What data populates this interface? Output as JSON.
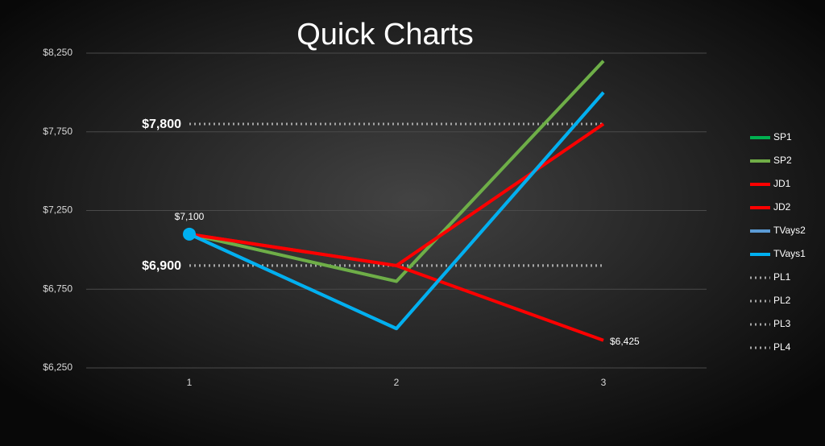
{
  "chart_data": {
    "type": "line",
    "title": "Quick Charts",
    "categories": [
      "1",
      "2",
      "3"
    ],
    "ylim": [
      6250,
      8250
    ],
    "yticks": [
      {
        "value": 6250,
        "label": "$6,250"
      },
      {
        "value": 6750,
        "label": "$6,750"
      },
      {
        "value": 7250,
        "label": "$7,250"
      },
      {
        "value": 7750,
        "label": "$7,750"
      },
      {
        "value": 8250,
        "label": "$8,250"
      }
    ],
    "grid": true,
    "legend": "right",
    "series": [
      {
        "name": "SP1",
        "color": "#00b050",
        "values": [
          7100,
          6800,
          8200
        ]
      },
      {
        "name": "SP2",
        "color": "#70ad47",
        "values": [
          7100,
          6800,
          8200
        ]
      },
      {
        "name": "JD1",
        "color": "#ff0000",
        "values": [
          7100,
          6900,
          6425
        ],
        "value_labels": [
          null,
          null,
          "$6,425"
        ]
      },
      {
        "name": "JD2",
        "color": "#ff0000",
        "values": [
          7100,
          6900,
          7800
        ]
      },
      {
        "name": "TVays2",
        "color": "#5b9bd5",
        "values": [
          7100,
          6500,
          8000
        ]
      },
      {
        "name": "TVays1",
        "color": "#00b0f0",
        "values": [
          7100,
          6500,
          8000
        ],
        "value_labels": [
          "$7,100",
          null,
          null
        ],
        "marker": true
      },
      {
        "name": "PL1",
        "color": "#a6a6a6",
        "dotted": true,
        "values": [
          7800,
          7800,
          7800
        ],
        "value_labels": [
          "$7,800",
          null,
          null
        ]
      },
      {
        "name": "PL2",
        "color": "#a6a6a6",
        "dotted": true,
        "values": [
          6900,
          6900,
          6900
        ],
        "value_labels": [
          "$6,900",
          null,
          null
        ]
      },
      {
        "name": "PL3",
        "color": "#a6a6a6",
        "dotted": true,
        "values": [
          7800,
          7800,
          7800
        ]
      },
      {
        "name": "PL4",
        "color": "#a6a6a6",
        "dotted": true,
        "values": [
          6900,
          6900,
          6900
        ]
      }
    ]
  }
}
